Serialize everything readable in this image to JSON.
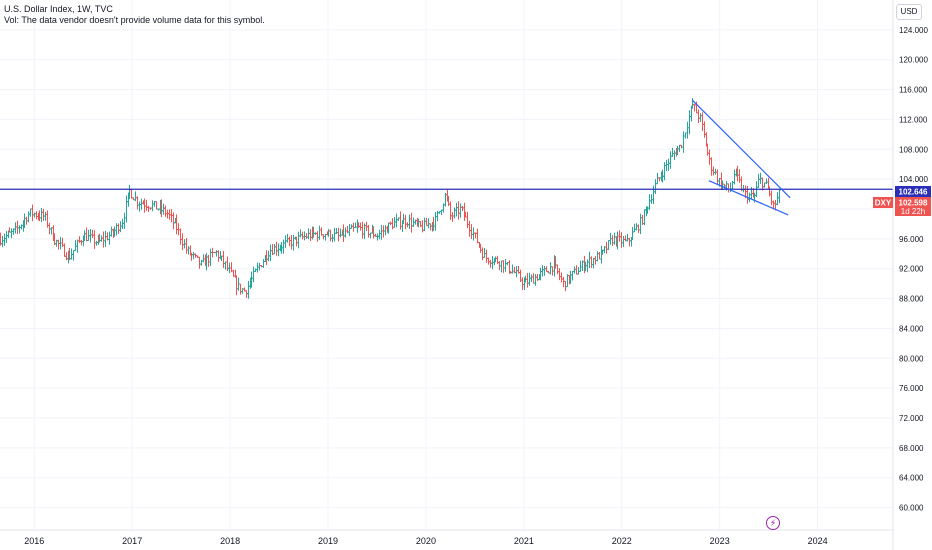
{
  "legend": {
    "title": "U.S. Dollar Index, 1W, TVC",
    "volume_note": "Vol: The data vendor doesn't provide volume data for this symbol."
  },
  "currency_button": "USD",
  "colors": {
    "up": "#26a69a",
    "down": "#ef5350",
    "candle": "#131722",
    "horizontal_line": "#2a2eb8",
    "trend_lines": "#2962ff",
    "last_price_tag": "#ef5350",
    "line_tag": "#2a2eb8",
    "grid": "#f0f3fa",
    "bolt": "#9c27b0"
  },
  "bolt_icon": "lightning-icon",
  "chart_data": {
    "type": "candlestick",
    "symbol": "DXY",
    "interval": "1W",
    "y_ticks": [
      60,
      64,
      68,
      72,
      76,
      80,
      84,
      88,
      92,
      96,
      100,
      104,
      108,
      112,
      116,
      120,
      124
    ],
    "y_tick_labels": [
      "60.000",
      "64.000",
      "68.000",
      "72.000",
      "76.000",
      "80.000",
      "84.000",
      "88.000",
      "92.000",
      "96.000",
      "100.000",
      "104.000",
      "108.000",
      "112.000",
      "116.000",
      "120.000",
      "124.000"
    ],
    "ylim": [
      57.0,
      128.0
    ],
    "x_range": [
      2015.65,
      2024.77
    ],
    "x_ticks": [
      2016,
      2017,
      2018,
      2019,
      2020,
      2021,
      2022,
      2023,
      2024
    ],
    "x_tick_labels": [
      "2016",
      "2017",
      "2018",
      "2019",
      "2020",
      "2021",
      "2022",
      "2023",
      "2024"
    ],
    "price_path": [
      [
        2015.65,
        96.0
      ],
      [
        2015.8,
        97.0
      ],
      [
        2015.95,
        99.5
      ],
      [
        2016.1,
        99.0
      ],
      [
        2016.2,
        96.0
      ],
      [
        2016.35,
        93.5
      ],
      [
        2016.5,
        96.5
      ],
      [
        2016.65,
        95.5
      ],
      [
        2016.8,
        96.8
      ],
      [
        2016.9,
        98.5
      ],
      [
        2016.97,
        102.5
      ],
      [
        2017.05,
        101.0
      ],
      [
        2017.2,
        100.5
      ],
      [
        2017.35,
        99.5
      ],
      [
        2017.45,
        97.5
      ],
      [
        2017.55,
        94.5
      ],
      [
        2017.7,
        92.5
      ],
      [
        2017.85,
        94.2
      ],
      [
        2017.95,
        92.5
      ],
      [
        2018.08,
        89.5
      ],
      [
        2018.15,
        89.0
      ],
      [
        2018.3,
        92.5
      ],
      [
        2018.4,
        94.5
      ],
      [
        2018.6,
        95.5
      ],
      [
        2018.8,
        96.5
      ],
      [
        2018.95,
        96.8
      ],
      [
        2019.1,
        96.3
      ],
      [
        2019.3,
        97.5
      ],
      [
        2019.5,
        96.5
      ],
      [
        2019.65,
        98.0
      ],
      [
        2019.8,
        98.5
      ],
      [
        2019.95,
        97.5
      ],
      [
        2020.1,
        98.5
      ],
      [
        2020.2,
        102.0
      ],
      [
        2020.25,
        99.0
      ],
      [
        2020.35,
        100.0
      ],
      [
        2020.45,
        97.5
      ],
      [
        2020.6,
        93.5
      ],
      [
        2020.75,
        93.0
      ],
      [
        2020.9,
        91.5
      ],
      [
        2021.0,
        90.0
      ],
      [
        2021.2,
        91.5
      ],
      [
        2021.3,
        92.5
      ],
      [
        2021.4,
        90.0
      ],
      [
        2021.6,
        92.5
      ],
      [
        2021.8,
        94.0
      ],
      [
        2021.9,
        96.0
      ],
      [
        2022.05,
        95.5
      ],
      [
        2022.2,
        98.5
      ],
      [
        2022.35,
        103.5
      ],
      [
        2022.5,
        107.0
      ],
      [
        2022.6,
        108.5
      ],
      [
        2022.72,
        114.0
      ],
      [
        2022.8,
        112.0
      ],
      [
        2022.9,
        106.0
      ],
      [
        2023.0,
        103.5
      ],
      [
        2023.1,
        102.5
      ],
      [
        2023.15,
        105.0
      ],
      [
        2023.25,
        102.0
      ],
      [
        2023.35,
        101.5
      ],
      [
        2023.4,
        104.0
      ],
      [
        2023.48,
        103.0
      ],
      [
        2023.55,
        100.2
      ],
      [
        2023.62,
        102.5
      ]
    ],
    "horizontal_line": 102.646,
    "trend_lines": [
      {
        "start": [
          2022.72,
          114.6
        ],
        "end": [
          2023.72,
          101.5
        ]
      },
      {
        "start": [
          2022.89,
          103.8
        ],
        "end": [
          2023.7,
          99.2
        ]
      }
    ],
    "price_tags": {
      "line_value": "102.646",
      "symbol": "DXY",
      "last_price": "102.598",
      "countdown": "1d 22h"
    },
    "last_price": 102.598
  }
}
